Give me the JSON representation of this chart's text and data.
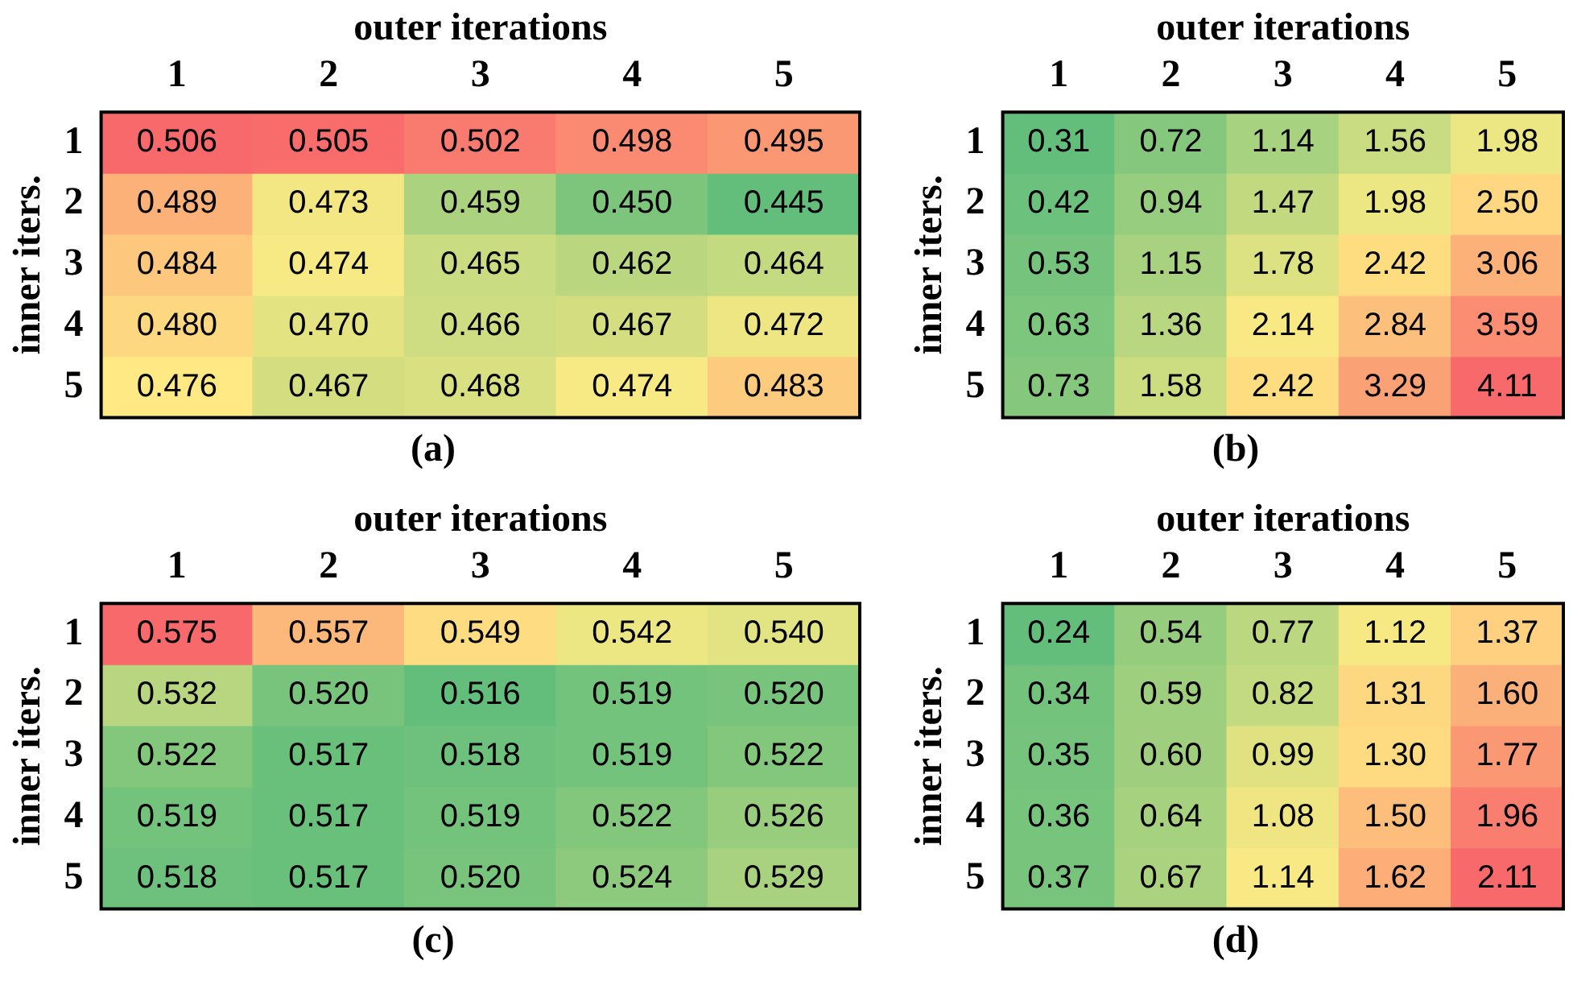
{
  "chart_data": [
    {
      "type": "heatmap",
      "title": "(a)",
      "xlabel": "outer iterations",
      "ylabel": "inner iters.",
      "categories": [
        "1",
        "2",
        "3",
        "4",
        "5"
      ],
      "y_categories": [
        "1",
        "2",
        "3",
        "4",
        "5"
      ],
      "cells": [
        [
          0.506,
          0.505,
          0.502,
          0.498,
          0.495
        ],
        [
          0.489,
          0.473,
          0.459,
          0.45,
          0.445
        ],
        [
          0.484,
          0.474,
          0.465,
          0.462,
          0.464
        ],
        [
          0.48,
          0.47,
          0.466,
          0.467,
          0.472
        ],
        [
          0.476,
          0.467,
          0.468,
          0.474,
          0.483
        ]
      ],
      "cell_labels": [
        [
          "0.506",
          "0.505",
          "0.502",
          "0.498",
          "0.495"
        ],
        [
          "0.489",
          "0.473",
          "0.459",
          "0.450",
          "0.445"
        ],
        [
          "0.484",
          "0.474",
          "0.465",
          "0.462",
          "0.464"
        ],
        [
          "0.480",
          "0.470",
          "0.466",
          "0.467",
          "0.472"
        ],
        [
          "0.476",
          "0.467",
          "0.468",
          "0.474",
          "0.483"
        ]
      ]
    },
    {
      "type": "heatmap",
      "title": "(b)",
      "xlabel": "outer iterations",
      "ylabel": "inner iters.",
      "categories": [
        "1",
        "2",
        "3",
        "4",
        "5"
      ],
      "y_categories": [
        "1",
        "2",
        "3",
        "4",
        "5"
      ],
      "cells": [
        [
          0.31,
          0.72,
          1.14,
          1.56,
          1.98
        ],
        [
          0.42,
          0.94,
          1.47,
          1.98,
          2.5
        ],
        [
          0.53,
          1.15,
          1.78,
          2.42,
          3.06
        ],
        [
          0.63,
          1.36,
          2.14,
          2.84,
          3.59
        ],
        [
          0.73,
          1.58,
          2.42,
          3.29,
          4.11
        ]
      ],
      "cell_labels": [
        [
          "0.31",
          "0.72",
          "1.14",
          "1.56",
          "1.98"
        ],
        [
          "0.42",
          "0.94",
          "1.47",
          "1.98",
          "2.50"
        ],
        [
          "0.53",
          "1.15",
          "1.78",
          "2.42",
          "3.06"
        ],
        [
          "0.63",
          "1.36",
          "2.14",
          "2.84",
          "3.59"
        ],
        [
          "0.73",
          "1.58",
          "2.42",
          "3.29",
          "4.11"
        ]
      ]
    },
    {
      "type": "heatmap",
      "title": "(c)",
      "xlabel": "outer iterations",
      "ylabel": "inner iters.",
      "categories": [
        "1",
        "2",
        "3",
        "4",
        "5"
      ],
      "y_categories": [
        "1",
        "2",
        "3",
        "4",
        "5"
      ],
      "cells": [
        [
          0.575,
          0.557,
          0.549,
          0.542,
          0.54
        ],
        [
          0.532,
          0.52,
          0.516,
          0.519,
          0.52
        ],
        [
          0.522,
          0.517,
          0.518,
          0.519,
          0.522
        ],
        [
          0.519,
          0.517,
          0.519,
          0.522,
          0.526
        ],
        [
          0.518,
          0.517,
          0.52,
          0.524,
          0.529
        ]
      ],
      "cell_labels": [
        [
          "0.575",
          "0.557",
          "0.549",
          "0.542",
          "0.540"
        ],
        [
          "0.532",
          "0.520",
          "0.516",
          "0.519",
          "0.520"
        ],
        [
          "0.522",
          "0.517",
          "0.518",
          "0.519",
          "0.522"
        ],
        [
          "0.519",
          "0.517",
          "0.519",
          "0.522",
          "0.526"
        ],
        [
          "0.518",
          "0.517",
          "0.520",
          "0.524",
          "0.529"
        ]
      ]
    },
    {
      "type": "heatmap",
      "title": "(d)",
      "xlabel": "outer iterations",
      "ylabel": "inner iters.",
      "categories": [
        "1",
        "2",
        "3",
        "4",
        "5"
      ],
      "y_categories": [
        "1",
        "2",
        "3",
        "4",
        "5"
      ],
      "cells": [
        [
          0.24,
          0.54,
          0.77,
          1.12,
          1.37
        ],
        [
          0.34,
          0.59,
          0.82,
          1.31,
          1.6
        ],
        [
          0.35,
          0.6,
          0.99,
          1.3,
          1.77
        ],
        [
          0.36,
          0.64,
          1.08,
          1.5,
          1.96
        ],
        [
          0.37,
          0.67,
          1.14,
          1.62,
          2.11
        ]
      ],
      "cell_labels": [
        [
          "0.24",
          "0.54",
          "0.77",
          "1.12",
          "1.37"
        ],
        [
          "0.34",
          "0.59",
          "0.82",
          "1.31",
          "1.60"
        ],
        [
          "0.35",
          "0.60",
          "0.99",
          "1.30",
          "1.77"
        ],
        [
          "0.36",
          "0.64",
          "1.08",
          "1.50",
          "1.96"
        ],
        [
          "0.37",
          "0.67",
          "1.14",
          "1.62",
          "2.11"
        ]
      ]
    }
  ]
}
